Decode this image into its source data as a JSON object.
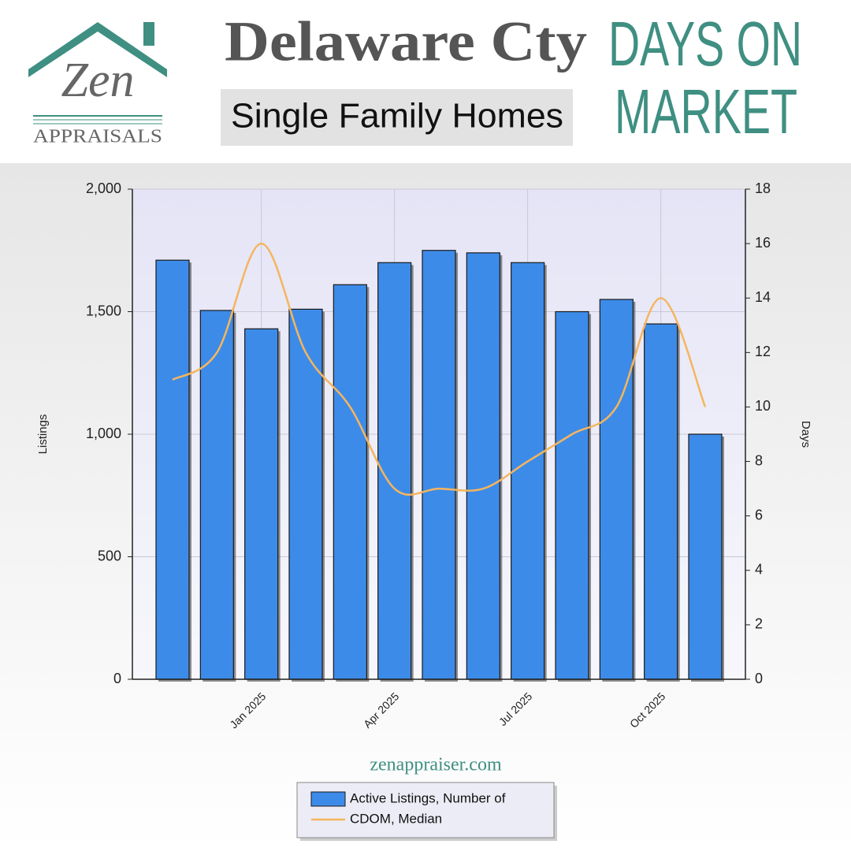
{
  "header": {
    "logo_name": "Zen",
    "logo_sub": "APPRAISALS",
    "title": "Delaware Cty",
    "subtitle": "Single Family Homes",
    "topic_line1": "DAYS ON",
    "topic_line2": "MARKET",
    "website": "zenappraiser.com"
  },
  "chart_data": {
    "type": "bar-line",
    "categories": [
      null,
      null,
      "Jan 2025",
      null,
      null,
      "Apr 2025",
      null,
      null,
      "Jul 2025",
      null,
      null,
      "Oct 2025",
      null
    ],
    "series": [
      {
        "name": "Active Listings, Number of",
        "type": "bar",
        "color": "#3d8be8",
        "values": [
          1710,
          1505,
          1430,
          1510,
          1610,
          1700,
          1750,
          1740,
          1700,
          1500,
          1550,
          1450,
          1000
        ]
      },
      {
        "name": "CDOM, Median",
        "type": "line",
        "axis": "y2",
        "color": "#f5b55e",
        "values": [
          11,
          12,
          16,
          12,
          10,
          7,
          7,
          7,
          8,
          9,
          10,
          14,
          10
        ]
      }
    ],
    "y_label": "Listings",
    "y2_label": "Days",
    "ylim": [
      0,
      2000
    ],
    "yticks": [
      0,
      500,
      {
        "value": 1000,
        "label": "1,000"
      },
      {
        "value": 1500,
        "label": "1,500"
      },
      {
        "value": 2000,
        "label": "2,000"
      }
    ],
    "y2lim": [
      0,
      18
    ],
    "y2ticks": [
      0,
      2,
      4,
      6,
      8,
      10,
      12,
      14,
      16,
      18
    ],
    "grid": true
  }
}
